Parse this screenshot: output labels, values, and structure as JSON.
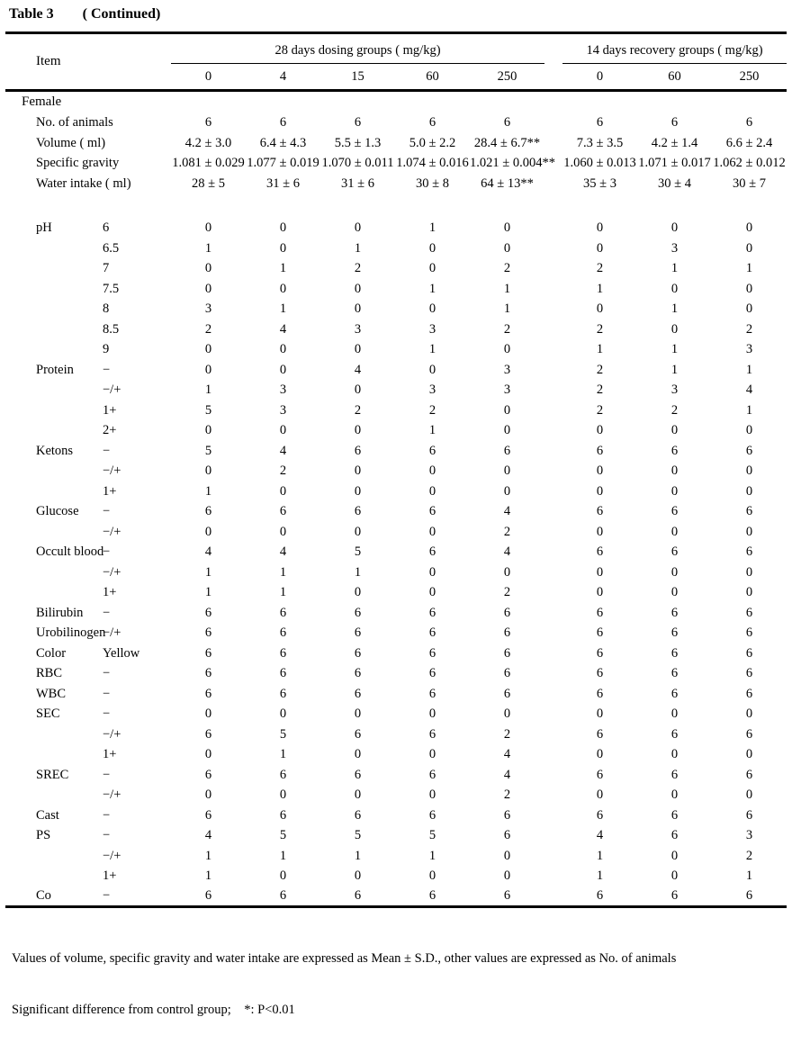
{
  "page": {
    "title": "Table 3",
    "title_suffix": "( Continued)"
  },
  "header": {
    "item_label": "Item",
    "dosing_group_label": "28 days dosing groups ( mg/kg)",
    "dosing_doses": [
      "0",
      "4",
      "15",
      "60",
      "250"
    ],
    "recovery_group_label": "14 days recovery groups ( mg/kg)",
    "recovery_doses": [
      "0",
      "60",
      "250"
    ]
  },
  "table": {
    "section": "Female",
    "rows": [
      {
        "item": "No. of animals",
        "sub": "",
        "values": [
          "6",
          "6",
          "6",
          "6",
          "6",
          "6",
          "6",
          "6"
        ]
      },
      {
        "item": "Volume ( ml)",
        "sub": "",
        "values": [
          "4.2 ± 3.0",
          "6.4 ± 4.3",
          "5.5 ± 1.3",
          "5.0 ± 2.2",
          "28.4 ± 6.7**",
          "7.3 ± 3.5",
          "4.2 ± 1.4",
          "6.6 ± 2.4"
        ]
      },
      {
        "item": "Specific gravity",
        "sub": "",
        "values": [
          "1.081 ± 0.029",
          "1.077 ± 0.019",
          "1.070 ± 0.011",
          "1.074 ± 0.016",
          "1.021 ± 0.004**",
          "1.060 ± 0.013",
          "1.071 ± 0.017",
          "1.062 ± 0.012"
        ]
      },
      {
        "item": "Water intake ( ml)",
        "sub": "",
        "values": [
          "28 ± 5",
          "31 ± 6",
          "31 ± 6",
          "30 ± 8",
          "64 ± 13**",
          "35 ± 3",
          "30 ± 4",
          "30 ± 7"
        ]
      },
      {
        "spacer": true,
        "item": "",
        "sub": "",
        "values": [
          "",
          "",
          "",
          "",
          "",
          "",
          "",
          ""
        ]
      },
      {
        "item": "pH",
        "sub": "6",
        "values": [
          "0",
          "0",
          "0",
          "1",
          "0",
          "0",
          "0",
          "0"
        ]
      },
      {
        "item": "",
        "sub": "6.5",
        "values": [
          "1",
          "0",
          "1",
          "0",
          "0",
          "0",
          "3",
          "0"
        ]
      },
      {
        "item": "",
        "sub": "7",
        "values": [
          "0",
          "1",
          "2",
          "0",
          "2",
          "2",
          "1",
          "1"
        ]
      },
      {
        "item": "",
        "sub": "7.5",
        "values": [
          "0",
          "0",
          "0",
          "1",
          "1",
          "1",
          "0",
          "0"
        ]
      },
      {
        "item": "",
        "sub": "8",
        "values": [
          "3",
          "1",
          "0",
          "0",
          "1",
          "0",
          "1",
          "0"
        ]
      },
      {
        "item": "",
        "sub": "8.5",
        "values": [
          "2",
          "4",
          "3",
          "3",
          "2",
          "2",
          "0",
          "2"
        ]
      },
      {
        "item": "",
        "sub": "9",
        "values": [
          "0",
          "0",
          "0",
          "1",
          "0",
          "1",
          "1",
          "3"
        ]
      },
      {
        "item": "Protein",
        "sub": "−",
        "values": [
          "0",
          "0",
          "4",
          "0",
          "3",
          "2",
          "1",
          "1"
        ]
      },
      {
        "item": "",
        "sub": "−/+",
        "values": [
          "1",
          "3",
          "0",
          "3",
          "3",
          "2",
          "3",
          "4"
        ]
      },
      {
        "item": "",
        "sub": "1+",
        "values": [
          "5",
          "3",
          "2",
          "2",
          "0",
          "2",
          "2",
          "1"
        ]
      },
      {
        "item": "",
        "sub": "2+",
        "values": [
          "0",
          "0",
          "0",
          "1",
          "0",
          "0",
          "0",
          "0"
        ]
      },
      {
        "item": "Ketons",
        "sub": "−",
        "values": [
          "5",
          "4",
          "6",
          "6",
          "6",
          "6",
          "6",
          "6"
        ]
      },
      {
        "item": "",
        "sub": "−/+",
        "values": [
          "0",
          "2",
          "0",
          "0",
          "0",
          "0",
          "0",
          "0"
        ]
      },
      {
        "item": "",
        "sub": "1+",
        "values": [
          "1",
          "0",
          "0",
          "0",
          "0",
          "0",
          "0",
          "0"
        ]
      },
      {
        "item": "Glucose",
        "sub": "−",
        "values": [
          "6",
          "6",
          "6",
          "6",
          "4",
          "6",
          "6",
          "6"
        ]
      },
      {
        "item": "",
        "sub": "−/+",
        "values": [
          "0",
          "0",
          "0",
          "0",
          "2",
          "0",
          "0",
          "0"
        ]
      },
      {
        "item": "Occult blood",
        "sub": "−",
        "values": [
          "4",
          "4",
          "5",
          "6",
          "4",
          "6",
          "6",
          "6"
        ]
      },
      {
        "item": "",
        "sub": "−/+",
        "values": [
          "1",
          "1",
          "1",
          "0",
          "0",
          "0",
          "0",
          "0"
        ]
      },
      {
        "item": "",
        "sub": "1+",
        "values": [
          "1",
          "1",
          "0",
          "0",
          "2",
          "0",
          "0",
          "0"
        ]
      },
      {
        "item": "Bilirubin",
        "sub": "−",
        "values": [
          "6",
          "6",
          "6",
          "6",
          "6",
          "6",
          "6",
          "6"
        ]
      },
      {
        "item": "Urobilinogen",
        "sub": "−/+",
        "values": [
          "6",
          "6",
          "6",
          "6",
          "6",
          "6",
          "6",
          "6"
        ]
      },
      {
        "item": "Color",
        "sub": "Yellow",
        "values": [
          "6",
          "6",
          "6",
          "6",
          "6",
          "6",
          "6",
          "6"
        ]
      },
      {
        "item": "RBC",
        "sub": "−",
        "values": [
          "6",
          "6",
          "6",
          "6",
          "6",
          "6",
          "6",
          "6"
        ]
      },
      {
        "item": "WBC",
        "sub": "−",
        "values": [
          "6",
          "6",
          "6",
          "6",
          "6",
          "6",
          "6",
          "6"
        ]
      },
      {
        "item": "SEC",
        "sub": "−",
        "values": [
          "0",
          "0",
          "0",
          "0",
          "0",
          "0",
          "0",
          "0"
        ]
      },
      {
        "item": "",
        "sub": "−/+",
        "values": [
          "6",
          "5",
          "6",
          "6",
          "2",
          "6",
          "6",
          "6"
        ]
      },
      {
        "item": "",
        "sub": "1+",
        "values": [
          "0",
          "1",
          "0",
          "0",
          "4",
          "0",
          "0",
          "0"
        ]
      },
      {
        "item": "SREC",
        "sub": "−",
        "values": [
          "6",
          "6",
          "6",
          "6",
          "4",
          "6",
          "6",
          "6"
        ]
      },
      {
        "item": "",
        "sub": "−/+",
        "values": [
          "0",
          "0",
          "0",
          "0",
          "2",
          "0",
          "0",
          "0"
        ]
      },
      {
        "item": "Cast",
        "sub": "−",
        "values": [
          "6",
          "6",
          "6",
          "6",
          "6",
          "6",
          "6",
          "6"
        ]
      },
      {
        "item": "PS",
        "sub": "−",
        "values": [
          "4",
          "5",
          "5",
          "5",
          "6",
          "4",
          "6",
          "3"
        ]
      },
      {
        "item": "",
        "sub": "−/+",
        "values": [
          "1",
          "1",
          "1",
          "1",
          "0",
          "1",
          "0",
          "2"
        ]
      },
      {
        "item": "",
        "sub": "1+",
        "values": [
          "1",
          "0",
          "0",
          "0",
          "0",
          "1",
          "0",
          "1"
        ]
      },
      {
        "item": "Co",
        "sub": "−",
        "values": [
          "6",
          "6",
          "6",
          "6",
          "6",
          "6",
          "6",
          "6"
        ]
      }
    ]
  },
  "footnotes": {
    "line1": "Values of volume, specific gravity and water intake are expressed as Mean ± S.D., other values are expressed as No. of animals",
    "line2": "Significant difference from control group;    *: P<0.01"
  }
}
